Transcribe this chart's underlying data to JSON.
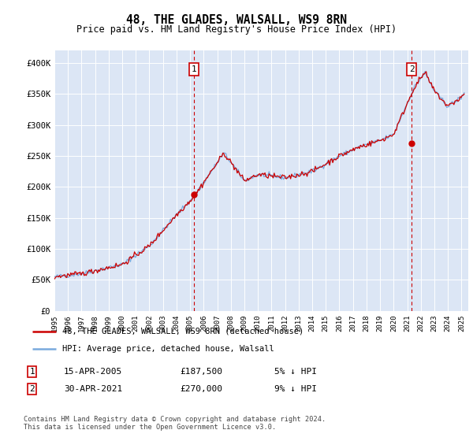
{
  "title": "48, THE GLADES, WALSALL, WS9 8RN",
  "subtitle": "Price paid vs. HM Land Registry's House Price Index (HPI)",
  "ylim": [
    0,
    420000
  ],
  "yticks": [
    0,
    50000,
    100000,
    150000,
    200000,
    250000,
    300000,
    350000,
    400000
  ],
  "ytick_labels": [
    "£0",
    "£50K",
    "£100K",
    "£150K",
    "£200K",
    "£250K",
    "£300K",
    "£350K",
    "£400K"
  ],
  "plot_bg_color": "#dce6f5",
  "hpi_color": "#7aaadd",
  "price_color": "#cc0000",
  "marker_color": "#cc0000",
  "sale1_year": 2005.29,
  "sale1_price": 187500,
  "sale2_year": 2021.33,
  "sale2_price": 270000,
  "sale1_date": "15-APR-2005",
  "sale1_amount": "£187,500",
  "sale1_hpi": "5% ↓ HPI",
  "sale2_date": "30-APR-2021",
  "sale2_amount": "£270,000",
  "sale2_hpi": "9% ↓ HPI",
  "legend_line1": "48, THE GLADES, WALSALL, WS9 8RN (detached house)",
  "legend_line2": "HPI: Average price, detached house, Walsall",
  "footer": "Contains HM Land Registry data © Crown copyright and database right 2024.\nThis data is licensed under the Open Government Licence v3.0."
}
